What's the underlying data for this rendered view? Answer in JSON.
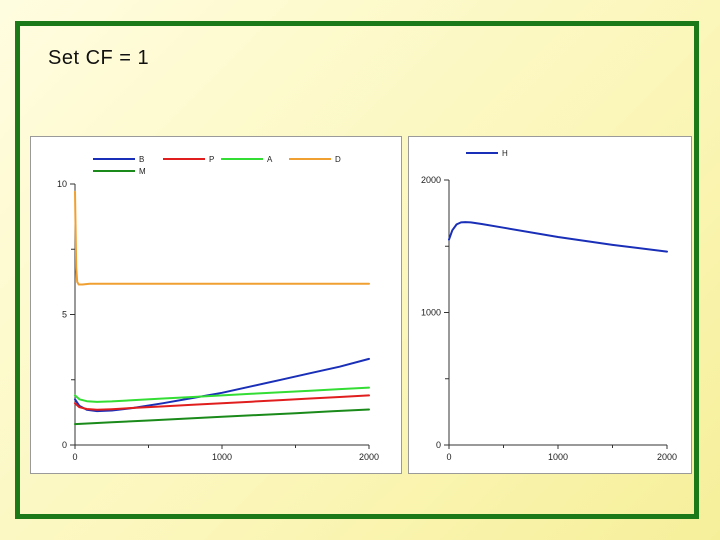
{
  "slide": {
    "title": "Set CF = 1"
  },
  "colors": {
    "frame": "#1b7a17",
    "B": "#1a2fb8",
    "P": "#e01e1e",
    "A": "#33dd33",
    "D": "#f0a030",
    "M": "#1a8a1a",
    "H": "#1a2fb8"
  },
  "chart_data": [
    {
      "type": "line",
      "title": "",
      "xlabel": "",
      "ylabel": "",
      "xlim": [
        0,
        2000
      ],
      "ylim": [
        0,
        10
      ],
      "x_ticks": [
        0,
        1000,
        2000
      ],
      "y_ticks": [
        0,
        5,
        10
      ],
      "grid": false,
      "legend_position": "top",
      "series": [
        {
          "name": "B",
          "x": [
            0,
            30,
            80,
            150,
            250,
            400,
            600,
            800,
            1000,
            1200,
            1400,
            1600,
            1800,
            2000
          ],
          "y": [
            1.75,
            1.5,
            1.35,
            1.3,
            1.32,
            1.42,
            1.6,
            1.8,
            2.0,
            2.25,
            2.5,
            2.75,
            3.0,
            3.3
          ]
        },
        {
          "name": "P",
          "x": [
            0,
            30,
            80,
            150,
            250,
            400,
            600,
            800,
            1000,
            1200,
            1400,
            1600,
            1800,
            2000
          ],
          "y": [
            1.6,
            1.45,
            1.38,
            1.35,
            1.37,
            1.42,
            1.48,
            1.54,
            1.6,
            1.66,
            1.72,
            1.78,
            1.84,
            1.9
          ]
        },
        {
          "name": "A",
          "x": [
            0,
            30,
            80,
            150,
            250,
            400,
            600,
            800,
            1000,
            1200,
            1400,
            1600,
            1800,
            2000
          ],
          "y": [
            1.9,
            1.75,
            1.68,
            1.65,
            1.67,
            1.72,
            1.78,
            1.84,
            1.9,
            1.96,
            2.02,
            2.08,
            2.14,
            2.2
          ]
        },
        {
          "name": "D",
          "x": [
            0,
            8,
            15,
            25,
            50,
            100,
            200,
            500,
            1000,
            1500,
            2000
          ],
          "y": [
            9.7,
            6.8,
            6.25,
            6.15,
            6.15,
            6.18,
            6.18,
            6.18,
            6.18,
            6.18,
            6.18
          ]
        },
        {
          "name": "M",
          "x": [
            0,
            250,
            500,
            750,
            1000,
            1250,
            1500,
            1750,
            2000
          ],
          "y": [
            0.8,
            0.87,
            0.94,
            1.01,
            1.08,
            1.15,
            1.22,
            1.29,
            1.36
          ]
        }
      ]
    },
    {
      "type": "line",
      "title": "",
      "xlabel": "",
      "ylabel": "",
      "xlim": [
        0,
        2000
      ],
      "ylim": [
        0,
        2000
      ],
      "x_ticks": [
        0,
        1000,
        2000
      ],
      "y_ticks": [
        0,
        1000,
        2000
      ],
      "grid": false,
      "legend_position": "top",
      "series": [
        {
          "name": "H",
          "x": [
            0,
            30,
            70,
            110,
            150,
            200,
            300,
            500,
            1000,
            1500,
            2000
          ],
          "y": [
            1550,
            1620,
            1665,
            1680,
            1682,
            1680,
            1668,
            1640,
            1570,
            1510,
            1460
          ]
        }
      ]
    }
  ]
}
